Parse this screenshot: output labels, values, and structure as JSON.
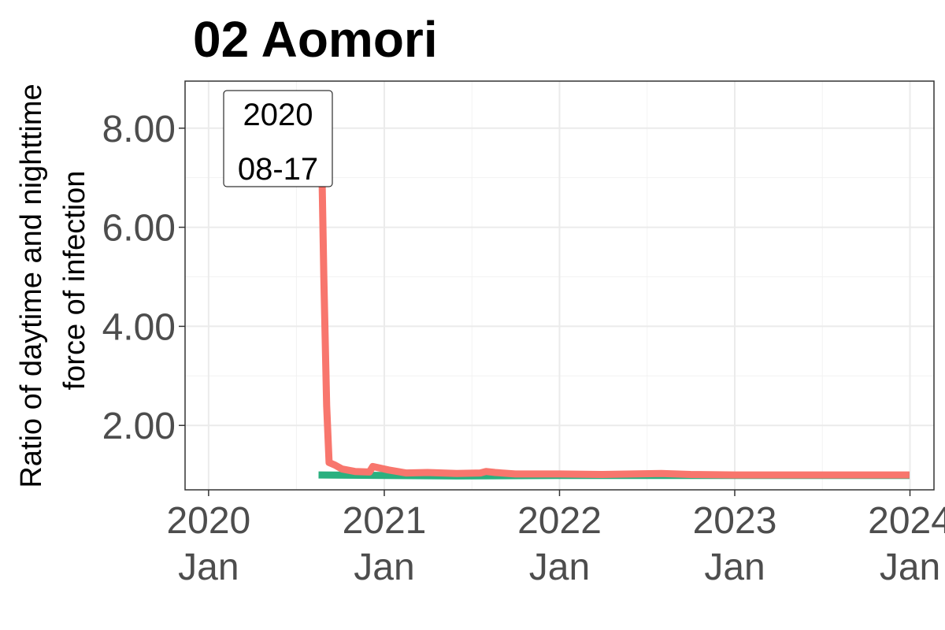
{
  "chart_data": {
    "type": "line",
    "title": "02 Aomori",
    "ylabel_lines": [
      "Ratio of daytime and nighttime",
      "force of infection"
    ],
    "xlabel": "",
    "x_axis": {
      "type": "date",
      "range": [
        "2019-11-13",
        "2024-02-20"
      ],
      "ticks": [
        {
          "date": "2020-01-01",
          "line1": "2020",
          "line2": "Jan"
        },
        {
          "date": "2021-01-01",
          "line1": "2021",
          "line2": "Jan"
        },
        {
          "date": "2022-01-01",
          "line1": "2022",
          "line2": "Jan"
        },
        {
          "date": "2023-01-01",
          "line1": "2023",
          "line2": "Jan"
        },
        {
          "date": "2024-01-01",
          "line1": "2024",
          "line2": "Jan"
        }
      ]
    },
    "y_axis": {
      "range": [
        0.7,
        8.95
      ],
      "ticks": [
        2,
        4,
        6,
        8
      ],
      "tick_labels": [
        "2.00",
        "4.00",
        "6.00",
        "8.00"
      ]
    },
    "grid": true,
    "series": [
      {
        "color": "#F8766D",
        "points": [
          [
            "2020-08-17",
            8.6
          ],
          [
            "2020-08-22",
            8.3
          ],
          [
            "2020-08-28",
            5.0
          ],
          [
            "2020-09-03",
            2.4
          ],
          [
            "2020-09-08",
            1.25
          ],
          [
            "2020-09-20",
            1.2
          ],
          [
            "2020-10-05",
            1.12
          ],
          [
            "2020-11-01",
            1.07
          ],
          [
            "2020-12-01",
            1.06
          ],
          [
            "2020-12-08",
            1.17
          ],
          [
            "2021-01-10",
            1.1
          ],
          [
            "2021-02-15",
            1.04
          ],
          [
            "2021-04-01",
            1.05
          ],
          [
            "2021-06-01",
            1.03
          ],
          [
            "2021-07-20",
            1.04
          ],
          [
            "2021-08-01",
            1.07
          ],
          [
            "2021-08-20",
            1.05
          ],
          [
            "2021-10-01",
            1.02
          ],
          [
            "2022-01-01",
            1.02
          ],
          [
            "2022-04-01",
            1.01
          ],
          [
            "2022-06-01",
            1.02
          ],
          [
            "2022-08-01",
            1.03
          ],
          [
            "2022-10-01",
            1.01
          ],
          [
            "2023-01-01",
            1.0
          ],
          [
            "2023-06-01",
            1.0
          ],
          [
            "2023-12-31",
            1.0
          ]
        ]
      },
      {
        "color": "#2AB07F",
        "points": [
          [
            "2020-08-17",
            1.0
          ],
          [
            "2021-06-01",
            0.98
          ],
          [
            "2022-01-01",
            0.99
          ],
          [
            "2023-01-01",
            0.99
          ],
          [
            "2023-12-31",
            0.99
          ]
        ]
      }
    ],
    "annotation": {
      "date": "2020-08-17",
      "value": 8.6,
      "line1": "2020",
      "line2": "08-17",
      "marker_color": "#FF0000"
    }
  }
}
